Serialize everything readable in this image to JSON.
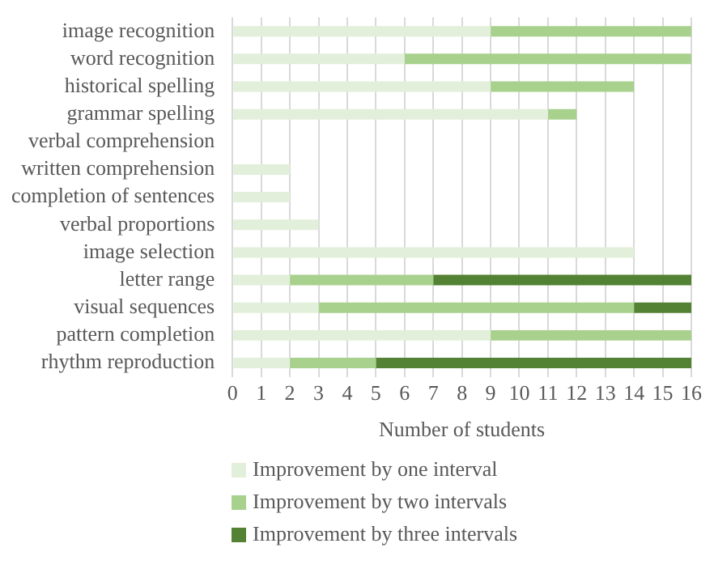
{
  "chart_data": {
    "type": "bar",
    "orientation": "horizontal",
    "stacked": true,
    "xlabel": "Number of students",
    "categories": [
      "image recognition",
      "word recognition",
      "historical spelling",
      "grammar spelling",
      "verbal comprehension",
      "written comprehension",
      "completion of sentences",
      "verbal proportions",
      "image selection",
      "letter range",
      "visual sequences",
      "pattern completion",
      "rhythm reproduction"
    ],
    "series": [
      {
        "name": "Improvement by one interval",
        "color": "#e2efda",
        "values": [
          9,
          6,
          9,
          11,
          0,
          2,
          2,
          3,
          14,
          2,
          3,
          9,
          2
        ]
      },
      {
        "name": "Improvement by two intervals",
        "color": "#a9d18e",
        "values": [
          7,
          10,
          5,
          1,
          0,
          0,
          0,
          0,
          0,
          5,
          11,
          7,
          3
        ]
      },
      {
        "name": "Improvement by three intervals",
        "color": "#548235",
        "values": [
          0,
          0,
          0,
          0,
          0,
          0,
          0,
          0,
          0,
          9,
          2,
          0,
          11
        ]
      }
    ],
    "xlim": [
      0,
      16
    ],
    "xticks": [
      0,
      1,
      2,
      3,
      4,
      5,
      6,
      7,
      8,
      9,
      10,
      11,
      12,
      13,
      14,
      15,
      16
    ],
    "grid": "x",
    "legend": "bottom"
  }
}
